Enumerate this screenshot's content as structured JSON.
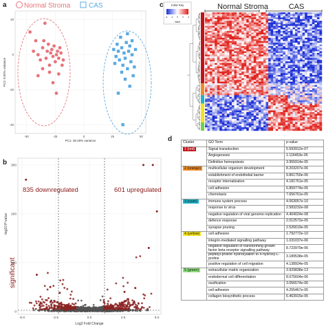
{
  "panels": {
    "a": "a",
    "b": "b",
    "c": "c",
    "d": "d"
  },
  "pca": {
    "legend": [
      {
        "label": "Normal Stroma",
        "color": "#e8737a"
      },
      {
        "label": "CAS",
        "color": "#5aa9e0"
      }
    ],
    "xlabel": "PC1: 38.49% variance",
    "ylabel": "PC2: 8.50% variance",
    "xticks": [
      "-50",
      "-25",
      "0",
      "25",
      "50"
    ],
    "yticks": [
      "20",
      "0",
      "-20",
      "-40"
    ],
    "normal_points": [
      [
        -47,
        13
      ],
      [
        -44,
        2
      ],
      [
        -42,
        8
      ],
      [
        -40,
        0
      ],
      [
        -38,
        -3
      ],
      [
        -36,
        4
      ],
      [
        -35,
        8
      ],
      [
        -33,
        -2
      ],
      [
        -32,
        2
      ],
      [
        -31,
        6
      ],
      [
        -30,
        -6
      ],
      [
        -29,
        1
      ],
      [
        -28,
        3
      ],
      [
        -27,
        -1
      ],
      [
        -26,
        5
      ],
      [
        -25,
        -4
      ],
      [
        -24,
        0
      ],
      [
        -23,
        2
      ],
      [
        -22,
        -2
      ],
      [
        -21,
        4
      ],
      [
        -20,
        1
      ],
      [
        -19,
        -6
      ],
      [
        -18,
        -3
      ],
      [
        -30,
        -10
      ],
      [
        -27,
        -16
      ],
      [
        -24,
        -22
      ],
      [
        -34,
        18
      ],
      [
        -22,
        -11
      ],
      [
        -36,
        -8
      ],
      [
        -40,
        -12
      ]
    ],
    "cas_points": [
      [
        26,
        3
      ],
      [
        28,
        -1
      ],
      [
        29,
        6
      ],
      [
        30,
        2
      ],
      [
        31,
        -3
      ],
      [
        32,
        10
      ],
      [
        33,
        4
      ],
      [
        34,
        -6
      ],
      [
        35,
        1
      ],
      [
        36,
        -2
      ],
      [
        37,
        7
      ],
      [
        38,
        -8
      ],
      [
        39,
        2
      ],
      [
        40,
        5
      ],
      [
        41,
        -4
      ],
      [
        42,
        0
      ],
      [
        43,
        -12
      ],
      [
        44,
        -7
      ],
      [
        45,
        3
      ],
      [
        33,
        -10
      ],
      [
        36,
        -14
      ],
      [
        40,
        -18
      ],
      [
        34,
        -40
      ],
      [
        30,
        -22
      ],
      [
        38,
        12
      ],
      [
        27,
        -5
      ],
      [
        42,
        8
      ]
    ]
  },
  "volcano": {
    "xlabel": "Log2 Fold Change",
    "ylabel": "-log10 P-value",
    "xticks": [
      "-5.0",
      "-2.5",
      "0.0",
      "2.5",
      "5.0"
    ],
    "yticks": [
      "0",
      "100",
      "200",
      "300"
    ],
    "down_label": "835 downregulated",
    "up_label": "601 upregulated",
    "sig_label": "significant"
  },
  "heatmap": {
    "color_key_title": "Color Key",
    "color_key_ticks": [
      "-4",
      "-2",
      "0",
      "2",
      "4"
    ],
    "color_key_axis": "Value",
    "col_labels": [
      "Normal Stroma",
      "CAS"
    ],
    "cluster_colors": [
      "#c0141a",
      "#f08a24",
      "#20b2c6",
      "#f2e21a",
      "#6cd44a"
    ]
  },
  "go_table": {
    "headers": [
      "Cluster",
      "GO Term",
      "p-value"
    ],
    "groups": [
      {
        "cluster": "1 (red)",
        "color": "#c0141a",
        "text_color": "#ffffff",
        "rows": [
          [
            "Signal transduction",
            "5.593912e-07"
          ],
          [
            "Angiogenesis",
            "1.116453e-05"
          ],
          [
            "Definitive hemopoiesis",
            "3.955914e-05"
          ]
        ]
      },
      {
        "cluster": "2 (orange)",
        "color": "#f08a24",
        "text_color": "#111111",
        "rows": [
          [
            "multicellular organism development",
            "8.203207e-06"
          ],
          [
            "establishment of endothelial barrier",
            "9.861750e-06"
          ],
          [
            "receptor internalization",
            "4.181761e-05"
          ],
          [
            "cell adhesion",
            "6.859774e-05"
          ],
          [
            "chemotaxis",
            "7.656761e-05"
          ]
        ]
      },
      {
        "cluster": "3 (cyan)",
        "color": "#20b2c6",
        "text_color": "#111111",
        "rows": [
          [
            "immune system process",
            "4.063057e-10"
          ],
          [
            "response to virus",
            "2.583232e-08"
          ],
          [
            "negative regulation of viral genome replication",
            "4.404024e-08"
          ],
          [
            "defence response",
            "2.012572e-05"
          ],
          [
            "synapse pruning",
            "2.526619e-05"
          ]
        ]
      },
      {
        "cluster": "4 (yellow)",
        "color": "#f2e21a",
        "text_color": "#111111",
        "rows": [
          [
            "cell adhesion",
            "1.792772e-10"
          ],
          [
            "integrin-mediated signalling pathway",
            "1.031037e-06"
          ],
          [
            "negative regulation of transforming growth factor beta receptor signalling pathway",
            "8.723979e-06"
          ],
          [
            "peptidyl-proline hydroxylation to 4-hydroxy-L-proline",
            "3.189538e-05"
          ],
          [
            "positive regulation of cell migration",
            "4.138924e-05"
          ]
        ]
      },
      {
        "cluster": "5 (green)",
        "color": "#8be07a",
        "text_color": "#111111",
        "rows": [
          [
            "extracellular matrix organization",
            "3.929838e-13"
          ],
          [
            "endodermal cell differentiation",
            "8.075604e-06"
          ],
          [
            "ossification",
            "3.056574e-06"
          ],
          [
            "cell adhesion",
            "4.255467e-05"
          ],
          [
            "collagen biosynthetic process",
            "6.463915e-05"
          ]
        ]
      }
    ]
  }
}
